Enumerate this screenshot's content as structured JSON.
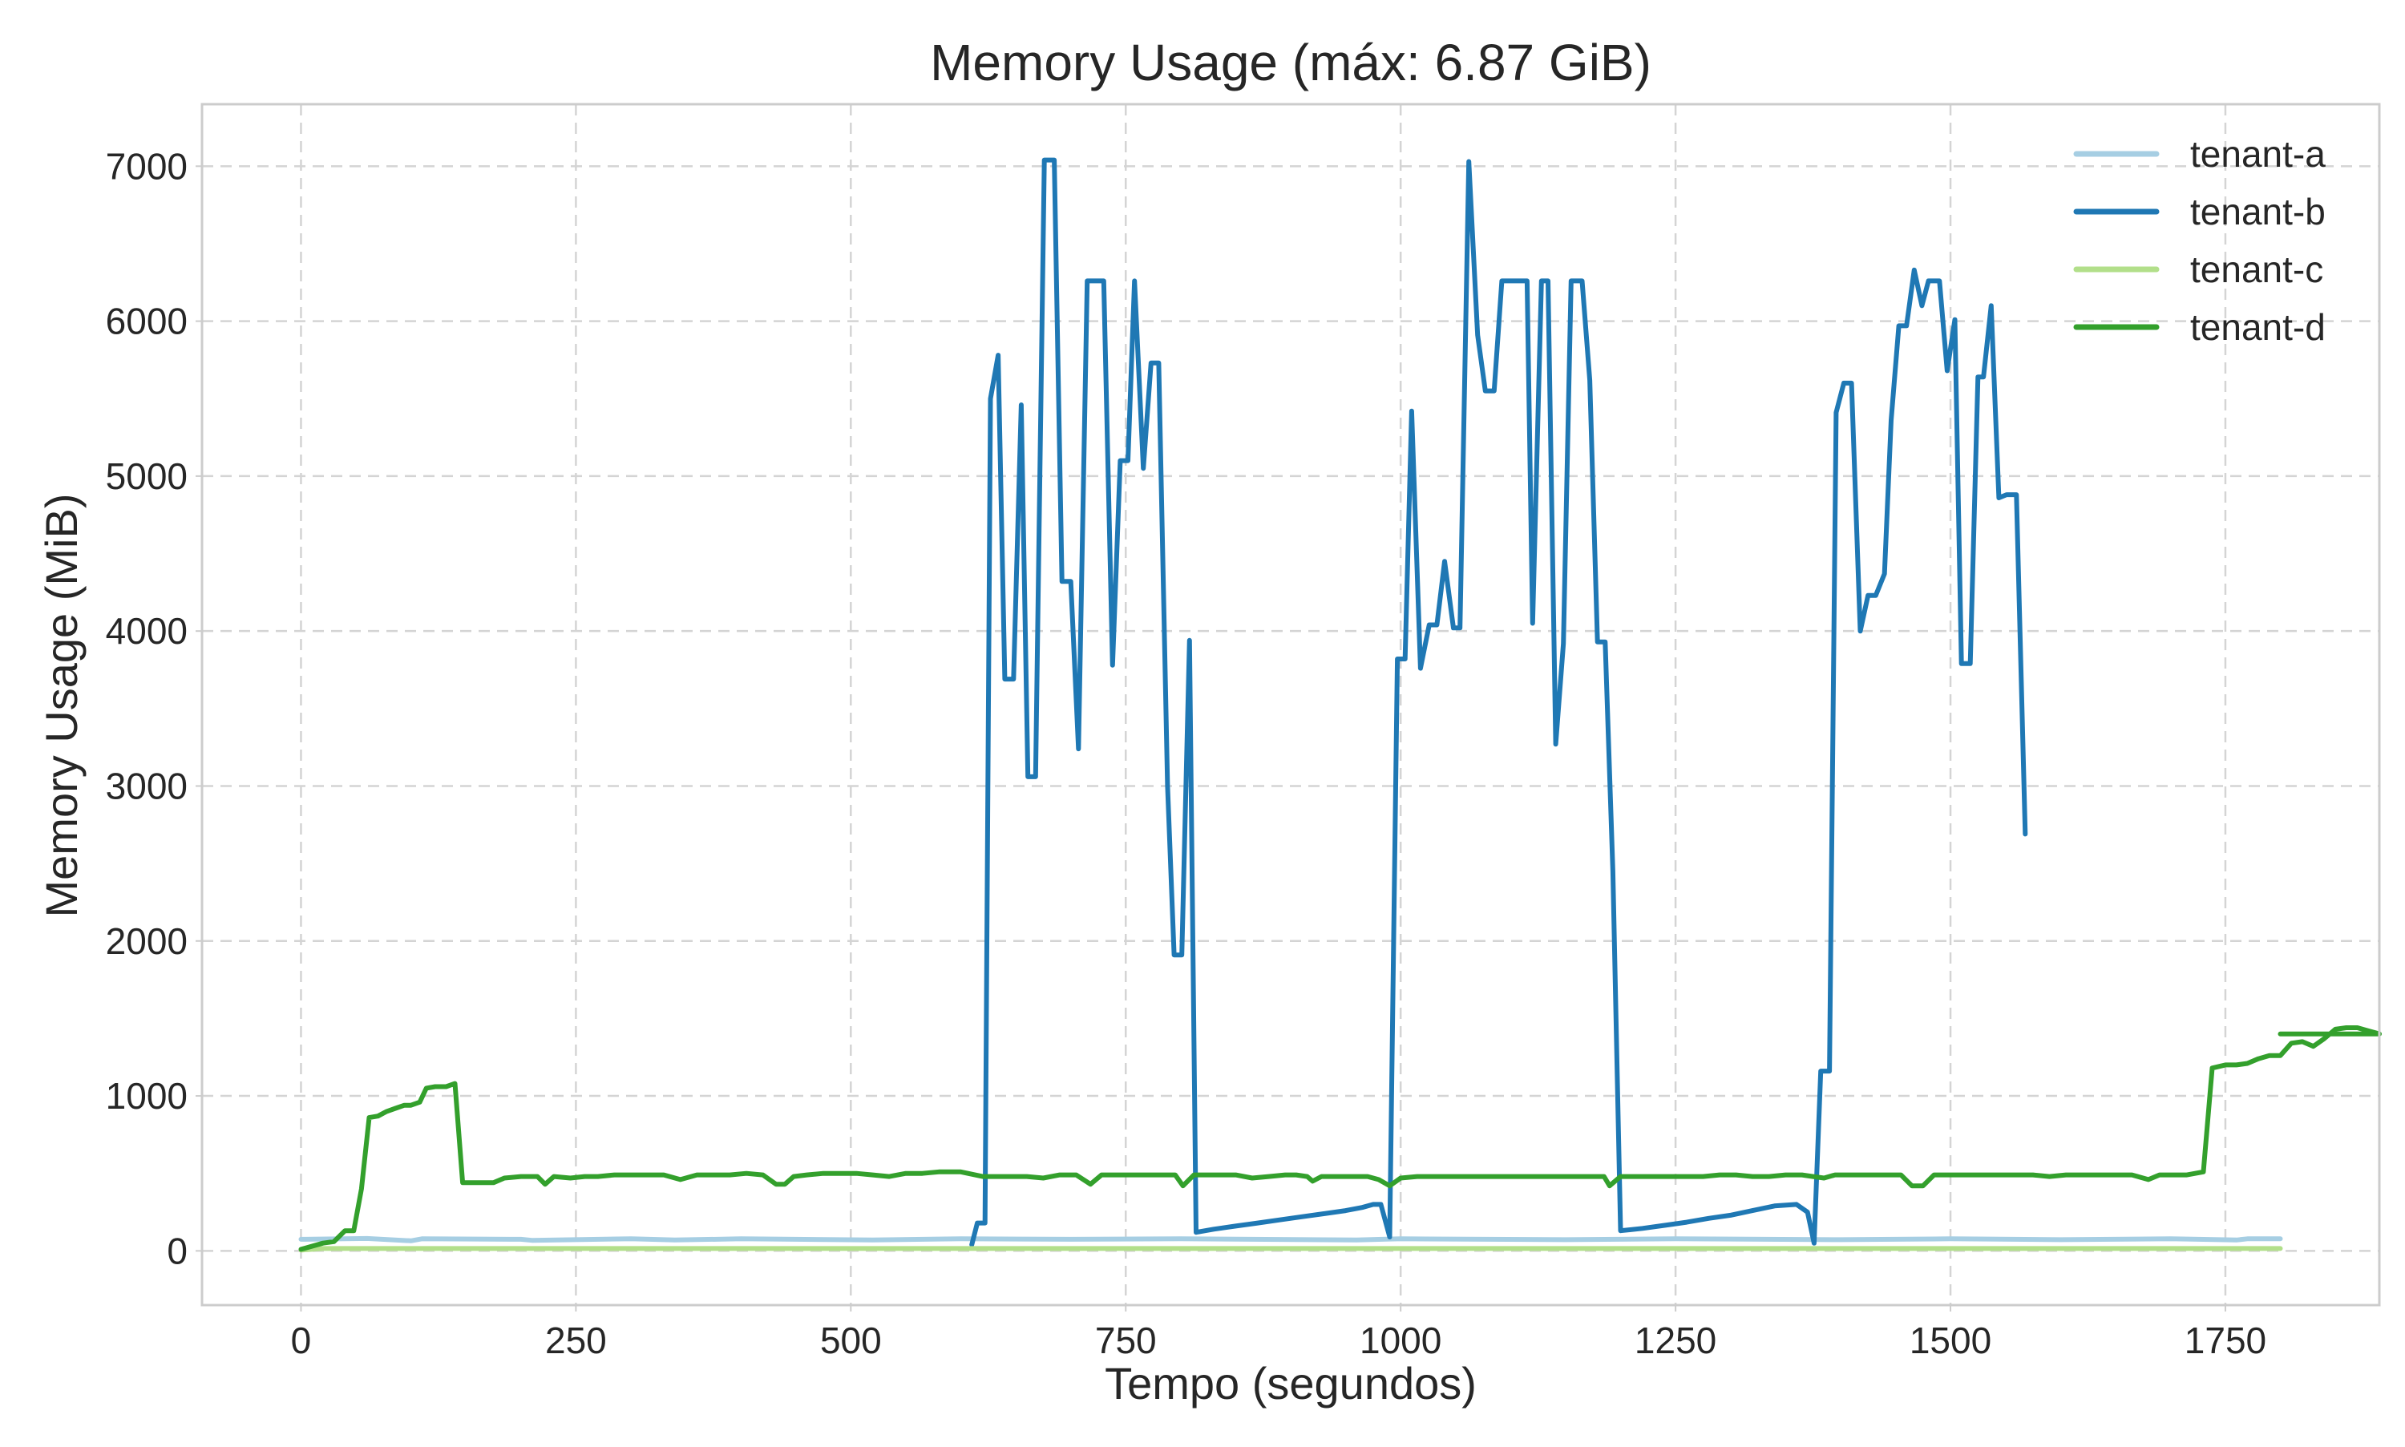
{
  "chart_data": {
    "type": "line",
    "title": "Memory Usage (máx: 6.87 GiB)",
    "xlabel": "Tempo (segundos)",
    "ylabel": "Memory Usage (MiB)",
    "xlim": [
      -90,
      1890
    ],
    "ylim": [
      -350,
      7400
    ],
    "xticks": [
      0,
      250,
      500,
      750,
      1000,
      1250,
      1500,
      1750
    ],
    "yticks": [
      0,
      1000,
      2000,
      3000,
      4000,
      5000,
      6000,
      7000
    ],
    "xtick_labels": [
      "0",
      "250",
      "500",
      "750",
      "1000",
      "1250",
      "1500",
      "1750"
    ],
    "ytick_labels": [
      "0",
      "1000",
      "2000",
      "3000",
      "4000",
      "5000",
      "6000",
      "7000"
    ],
    "grid": true,
    "legend_position": "top-right",
    "series": [
      {
        "name": "tenant-a",
        "color": "#a6cee3",
        "points": [
          [
            0,
            75
          ],
          [
            60,
            80
          ],
          [
            100,
            65
          ],
          [
            110,
            78
          ],
          [
            200,
            75
          ],
          [
            210,
            68
          ],
          [
            300,
            78
          ],
          [
            340,
            70
          ],
          [
            400,
            78
          ],
          [
            520,
            70
          ],
          [
            600,
            78
          ],
          [
            700,
            75
          ],
          [
            800,
            78
          ],
          [
            960,
            70
          ],
          [
            1000,
            78
          ],
          [
            1150,
            72
          ],
          [
            1250,
            78
          ],
          [
            1400,
            72
          ],
          [
            1500,
            78
          ],
          [
            1600,
            72
          ],
          [
            1700,
            78
          ],
          [
            1760,
            70
          ],
          [
            1770,
            78
          ],
          [
            1800,
            78
          ]
        ]
      },
      {
        "name": "tenant-b",
        "color": "#1f78b4",
        "points": [
          [
            610,
            40
          ],
          [
            615,
            180
          ],
          [
            622,
            180
          ],
          [
            627,
            5500
          ],
          [
            634,
            5780
          ],
          [
            640,
            3690
          ],
          [
            648,
            3690
          ],
          [
            655,
            5460
          ],
          [
            661,
            3060
          ],
          [
            668,
            3060
          ],
          [
            676,
            7040
          ],
          [
            685,
            7040
          ],
          [
            692,
            4320
          ],
          [
            700,
            4320
          ],
          [
            707,
            3240
          ],
          [
            715,
            6260
          ],
          [
            730,
            6260
          ],
          [
            738,
            3780
          ],
          [
            745,
            5100
          ],
          [
            752,
            5100
          ],
          [
            758,
            6260
          ],
          [
            766,
            5050
          ],
          [
            773,
            5730
          ],
          [
            780,
            5730
          ],
          [
            788,
            3000
          ],
          [
            794,
            1910
          ],
          [
            801,
            1910
          ],
          [
            808,
            3940
          ],
          [
            814,
            120
          ],
          [
            830,
            140
          ],
          [
            850,
            160
          ],
          [
            870,
            180
          ],
          [
            890,
            200
          ],
          [
            910,
            220
          ],
          [
            930,
            240
          ],
          [
            950,
            260
          ],
          [
            965,
            280
          ],
          [
            975,
            300
          ],
          [
            982,
            300
          ],
          [
            990,
            90
          ],
          [
            997,
            3820
          ],
          [
            1004,
            3820
          ],
          [
            1010,
            5420
          ],
          [
            1018,
            3760
          ],
          [
            1026,
            4040
          ],
          [
            1033,
            4040
          ],
          [
            1040,
            4450
          ],
          [
            1048,
            4020
          ],
          [
            1054,
            4020
          ],
          [
            1062,
            7030
          ],
          [
            1070,
            5910
          ],
          [
            1077,
            5550
          ],
          [
            1085,
            5550
          ],
          [
            1092,
            6260
          ],
          [
            1115,
            6260
          ],
          [
            1120,
            4050
          ],
          [
            1128,
            6260
          ],
          [
            1134,
            6260
          ],
          [
            1141,
            3270
          ],
          [
            1148,
            3920
          ],
          [
            1155,
            6260
          ],
          [
            1165,
            6260
          ],
          [
            1172,
            5620
          ],
          [
            1179,
            3930
          ],
          [
            1186,
            3930
          ],
          [
            1193,
            2450
          ],
          [
            1200,
            130
          ],
          [
            1220,
            145
          ],
          [
            1240,
            165
          ],
          [
            1260,
            185
          ],
          [
            1280,
            210
          ],
          [
            1300,
            230
          ],
          [
            1320,
            260
          ],
          [
            1340,
            290
          ],
          [
            1360,
            300
          ],
          [
            1370,
            250
          ],
          [
            1376,
            50
          ],
          [
            1382,
            1160
          ],
          [
            1390,
            1160
          ],
          [
            1396,
            5410
          ],
          [
            1403,
            5600
          ],
          [
            1410,
            5600
          ],
          [
            1418,
            4000
          ],
          [
            1425,
            4230
          ],
          [
            1432,
            4230
          ],
          [
            1440,
            4370
          ],
          [
            1446,
            5360
          ],
          [
            1453,
            5970
          ],
          [
            1460,
            5970
          ],
          [
            1467,
            6330
          ],
          [
            1474,
            6100
          ],
          [
            1480,
            6260
          ],
          [
            1490,
            6260
          ],
          [
            1497,
            5680
          ],
          [
            1504,
            6010
          ],
          [
            1510,
            3790
          ],
          [
            1518,
            3790
          ],
          [
            1525,
            5640
          ],
          [
            1530,
            5640
          ],
          [
            1537,
            6100
          ],
          [
            1544,
            4860
          ],
          [
            1551,
            4880
          ],
          [
            1560,
            4880
          ],
          [
            1568,
            2690
          ]
        ]
      },
      {
        "name": "tenant-c",
        "color": "#b2df8a",
        "points": [
          [
            0,
            5
          ],
          [
            20,
            15
          ],
          [
            1800,
            15
          ]
        ]
      },
      {
        "name": "tenant-d",
        "color": "#33a02c",
        "points": [
          [
            0,
            10
          ],
          [
            20,
            50
          ],
          [
            30,
            60
          ],
          [
            40,
            130
          ],
          [
            48,
            130
          ],
          [
            55,
            400
          ],
          [
            62,
            860
          ],
          [
            70,
            870
          ],
          [
            78,
            900
          ],
          [
            86,
            920
          ],
          [
            94,
            940
          ],
          [
            100,
            940
          ],
          [
            108,
            960
          ],
          [
            114,
            1050
          ],
          [
            122,
            1060
          ],
          [
            132,
            1060
          ],
          [
            140,
            1080
          ],
          [
            147,
            440
          ],
          [
            160,
            440
          ],
          [
            175,
            440
          ],
          [
            185,
            470
          ],
          [
            200,
            480
          ],
          [
            215,
            480
          ],
          [
            222,
            430
          ],
          [
            230,
            480
          ],
          [
            245,
            470
          ],
          [
            258,
            480
          ],
          [
            270,
            480
          ],
          [
            285,
            490
          ],
          [
            300,
            490
          ],
          [
            315,
            490
          ],
          [
            330,
            490
          ],
          [
            345,
            460
          ],
          [
            360,
            490
          ],
          [
            375,
            490
          ],
          [
            390,
            490
          ],
          [
            405,
            500
          ],
          [
            420,
            490
          ],
          [
            432,
            430
          ],
          [
            440,
            430
          ],
          [
            448,
            480
          ],
          [
            460,
            490
          ],
          [
            475,
            500
          ],
          [
            490,
            500
          ],
          [
            505,
            500
          ],
          [
            520,
            490
          ],
          [
            535,
            480
          ],
          [
            550,
            500
          ],
          [
            565,
            500
          ],
          [
            580,
            510
          ],
          [
            600,
            510
          ],
          [
            620,
            480
          ],
          [
            640,
            480
          ],
          [
            660,
            480
          ],
          [
            675,
            470
          ],
          [
            690,
            490
          ],
          [
            705,
            490
          ],
          [
            718,
            430
          ],
          [
            728,
            490
          ],
          [
            740,
            490
          ],
          [
            760,
            490
          ],
          [
            780,
            490
          ],
          [
            795,
            490
          ],
          [
            802,
            420
          ],
          [
            812,
            490
          ],
          [
            830,
            490
          ],
          [
            850,
            490
          ],
          [
            865,
            470
          ],
          [
            880,
            480
          ],
          [
            895,
            490
          ],
          [
            905,
            490
          ],
          [
            915,
            480
          ],
          [
            920,
            450
          ],
          [
            928,
            480
          ],
          [
            945,
            480
          ],
          [
            960,
            480
          ],
          [
            970,
            480
          ],
          [
            980,
            460
          ],
          [
            990,
            420
          ],
          [
            1000,
            470
          ],
          [
            1015,
            480
          ],
          [
            1030,
            480
          ],
          [
            1045,
            480
          ],
          [
            1060,
            480
          ],
          [
            1070,
            480
          ],
          [
            1080,
            480
          ],
          [
            1095,
            480
          ],
          [
            1110,
            480
          ],
          [
            1125,
            480
          ],
          [
            1140,
            480
          ],
          [
            1155,
            480
          ],
          [
            1170,
            480
          ],
          [
            1185,
            480
          ],
          [
            1190,
            420
          ],
          [
            1200,
            480
          ],
          [
            1215,
            480
          ],
          [
            1230,
            480
          ],
          [
            1245,
            480
          ],
          [
            1260,
            480
          ],
          [
            1275,
            480
          ],
          [
            1290,
            490
          ],
          [
            1305,
            490
          ],
          [
            1320,
            480
          ],
          [
            1335,
            480
          ],
          [
            1350,
            490
          ],
          [
            1365,
            490
          ],
          [
            1375,
            480
          ],
          [
            1385,
            470
          ],
          [
            1395,
            490
          ],
          [
            1410,
            490
          ],
          [
            1425,
            490
          ],
          [
            1440,
            490
          ],
          [
            1455,
            490
          ],
          [
            1465,
            420
          ],
          [
            1475,
            420
          ],
          [
            1485,
            490
          ],
          [
            1500,
            490
          ],
          [
            1515,
            490
          ],
          [
            1530,
            490
          ],
          [
            1545,
            490
          ],
          [
            1560,
            490
          ],
          [
            1575,
            490
          ],
          [
            1590,
            480
          ],
          [
            1605,
            490
          ],
          [
            1620,
            490
          ],
          [
            1635,
            490
          ],
          [
            1650,
            490
          ],
          [
            1665,
            490
          ],
          [
            1680,
            460
          ],
          [
            1690,
            490
          ],
          [
            1700,
            490
          ],
          [
            1715,
            490
          ],
          [
            1730,
            510
          ],
          [
            1738,
            1180
          ],
          [
            1750,
            1200
          ],
          [
            1760,
            1200
          ],
          [
            1770,
            1210
          ],
          [
            1780,
            1240
          ],
          [
            1790,
            1260
          ],
          [
            1800,
            1260
          ],
          [
            1810,
            1340
          ],
          [
            1820,
            1350
          ],
          [
            1830,
            1320
          ],
          [
            1840,
            1370
          ],
          [
            1850,
            1430
          ],
          [
            1860,
            1440
          ],
          [
            1870,
            1440
          ],
          [
            1880,
            1420
          ],
          [
            1890,
            1400
          ],
          [
            1800,
            1400
          ]
        ]
      }
    ]
  }
}
